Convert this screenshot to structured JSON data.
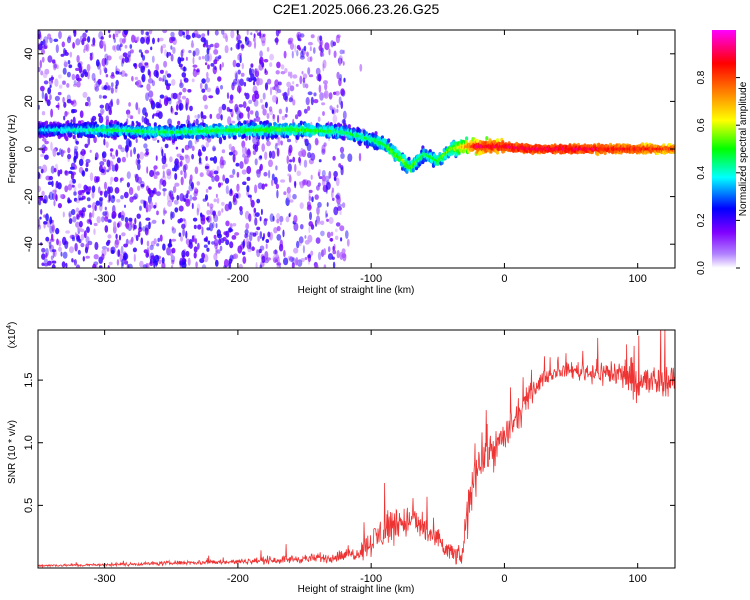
{
  "title": "C2E1.2025.066.23.26.G25",
  "chart_data": [
    {
      "type": "heatmap",
      "xlabel": "Height of straight line (km)",
      "ylabel": "Frequency (Hz)",
      "xlim": [
        -350,
        128
      ],
      "ylim": [
        -50,
        50
      ],
      "xticks": [
        -300,
        -200,
        -100,
        0,
        100
      ],
      "xtick_labels": [
        "-300",
        "-200",
        "-100",
        "0",
        "100"
      ],
      "yticks": [
        -40,
        -20,
        0,
        20,
        40
      ],
      "ytick_labels": [
        "-40",
        "-20",
        "0",
        "20",
        "40"
      ],
      "colorbar": {
        "label": "Normalized spectral amplitude",
        "range": [
          0,
          1
        ],
        "ticks": [
          0.0,
          0.2,
          0.4,
          0.6,
          0.8
        ],
        "tick_labels": [
          "0.0",
          "0.2",
          "0.4",
          "0.6",
          "0.8"
        ],
        "colormap": [
          "#ffffff",
          "#8000ff",
          "#0000ff",
          "#00ffff",
          "#00ff00",
          "#ffff00",
          "#ff8000",
          "#ff0000",
          "#ff00ff"
        ]
      },
      "ridge": {
        "x": [
          -350,
          -300,
          -250,
          -200,
          -150,
          -120,
          -100,
          -90,
          -80,
          -70,
          -60,
          -50,
          -40,
          -30,
          -20,
          0,
          20,
          50,
          100,
          128
        ],
        "freq": [
          8,
          8,
          7,
          8,
          8,
          7,
          4,
          2,
          -3,
          -8,
          -2,
          -5,
          0,
          1,
          1,
          1,
          0,
          0,
          0,
          0
        ],
        "amplitude": [
          0.35,
          0.45,
          0.45,
          0.5,
          0.5,
          0.45,
          0.45,
          0.5,
          0.55,
          0.55,
          0.45,
          0.5,
          0.55,
          0.7,
          0.9,
          0.9,
          0.9,
          0.9,
          0.85,
          0.8
        ]
      },
      "scatter_noise_region": [
        -350,
        -120
      ]
    },
    {
      "type": "line",
      "xlabel": "Height of straight line (km)",
      "ylabel": "SNR (10 * v/v)",
      "scale_label": "(x10",
      "scale_exp": "4",
      "scale_close": ")",
      "xlim": [
        -350,
        128
      ],
      "ylim": [
        0,
        19000
      ],
      "xticks": [
        -300,
        -200,
        -100,
        0,
        100
      ],
      "xtick_labels": [
        "-300",
        "-200",
        "-100",
        "0",
        "100"
      ],
      "yticks": [
        5000,
        10000,
        15000
      ],
      "ytick_labels": [
        "0.5",
        "1.0",
        "1.5"
      ],
      "color": "#ee3333",
      "series": [
        {
          "x": [
            -350,
            -300,
            -250,
            -200,
            -160,
            -130,
            -110,
            -95,
            -88,
            -80,
            -70,
            -60,
            -50,
            -40,
            -32,
            -28,
            -24,
            -20,
            -15,
            -10,
            -5,
            0,
            10,
            20,
            30,
            40,
            50,
            60,
            70,
            80,
            90,
            100,
            110,
            120,
            128
          ],
          "y": [
            200,
            250,
            400,
            500,
            700,
            800,
            1200,
            2500,
            3300,
            3600,
            3800,
            3200,
            2000,
            1200,
            800,
            4000,
            7000,
            8500,
            9000,
            9500,
            9800,
            10500,
            12000,
            14000,
            15200,
            15700,
            15800,
            15700,
            15600,
            15600,
            15400,
            14900,
            14800,
            15000,
            15000
          ],
          "noise": [
            100,
            120,
            180,
            220,
            350,
            400,
            600,
            1500,
            1800,
            1500,
            1300,
            1300,
            1200,
            900,
            700,
            2200,
            2300,
            2000,
            1800,
            1800,
            1600,
            1500,
            1300,
            900,
            600,
            500,
            700,
            900,
            1000,
            1200,
            1400,
            1800,
            1500,
            1400,
            1200
          ]
        }
      ]
    }
  ]
}
